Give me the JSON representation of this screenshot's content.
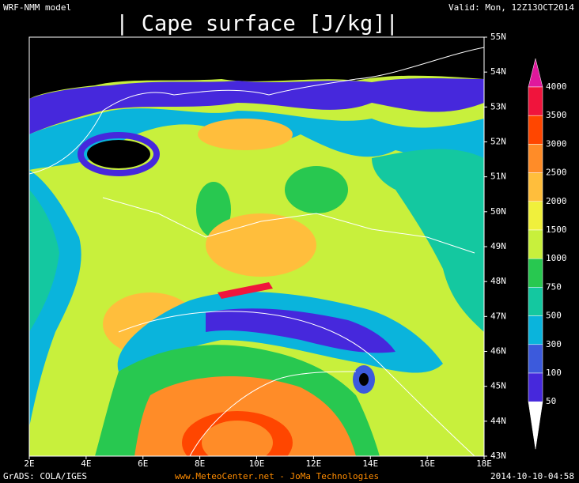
{
  "header": {
    "model": "WRF-NMM model",
    "title": "| Cape surface [J/kg]|",
    "valid": "Valid: Mon, 12Z13OCT2014"
  },
  "lon_labels": [
    "2E",
    "4E",
    "6E",
    "8E",
    "10E",
    "12E",
    "14E",
    "16E",
    "18E"
  ],
  "lat_labels": [
    "55N",
    "54N",
    "53N",
    "52N",
    "51N",
    "50N",
    "49N",
    "48N",
    "47N",
    "46N",
    "45N",
    "44N",
    "43N"
  ],
  "colorbar": {
    "levels": [
      4000,
      3500,
      3000,
      2500,
      2000,
      1500,
      1000,
      750,
      500,
      300,
      100,
      50
    ],
    "colors": [
      "#e0189c",
      "#f0143c",
      "#ff4600",
      "#ff8c28",
      "#ffbe3c",
      "#f0f03c",
      "#c8f03c",
      "#28c850",
      "#14c8a0",
      "#0ab4dc",
      "#3c5adc",
      "#4628dc",
      "#7814c8",
      "#ffffff"
    ]
  },
  "footer": {
    "left": "GrADS: COLA/IGES",
    "center": "www.MeteoCenter.net  -  JoMa Technologies",
    "right": "2014-10-10-04:58"
  }
}
